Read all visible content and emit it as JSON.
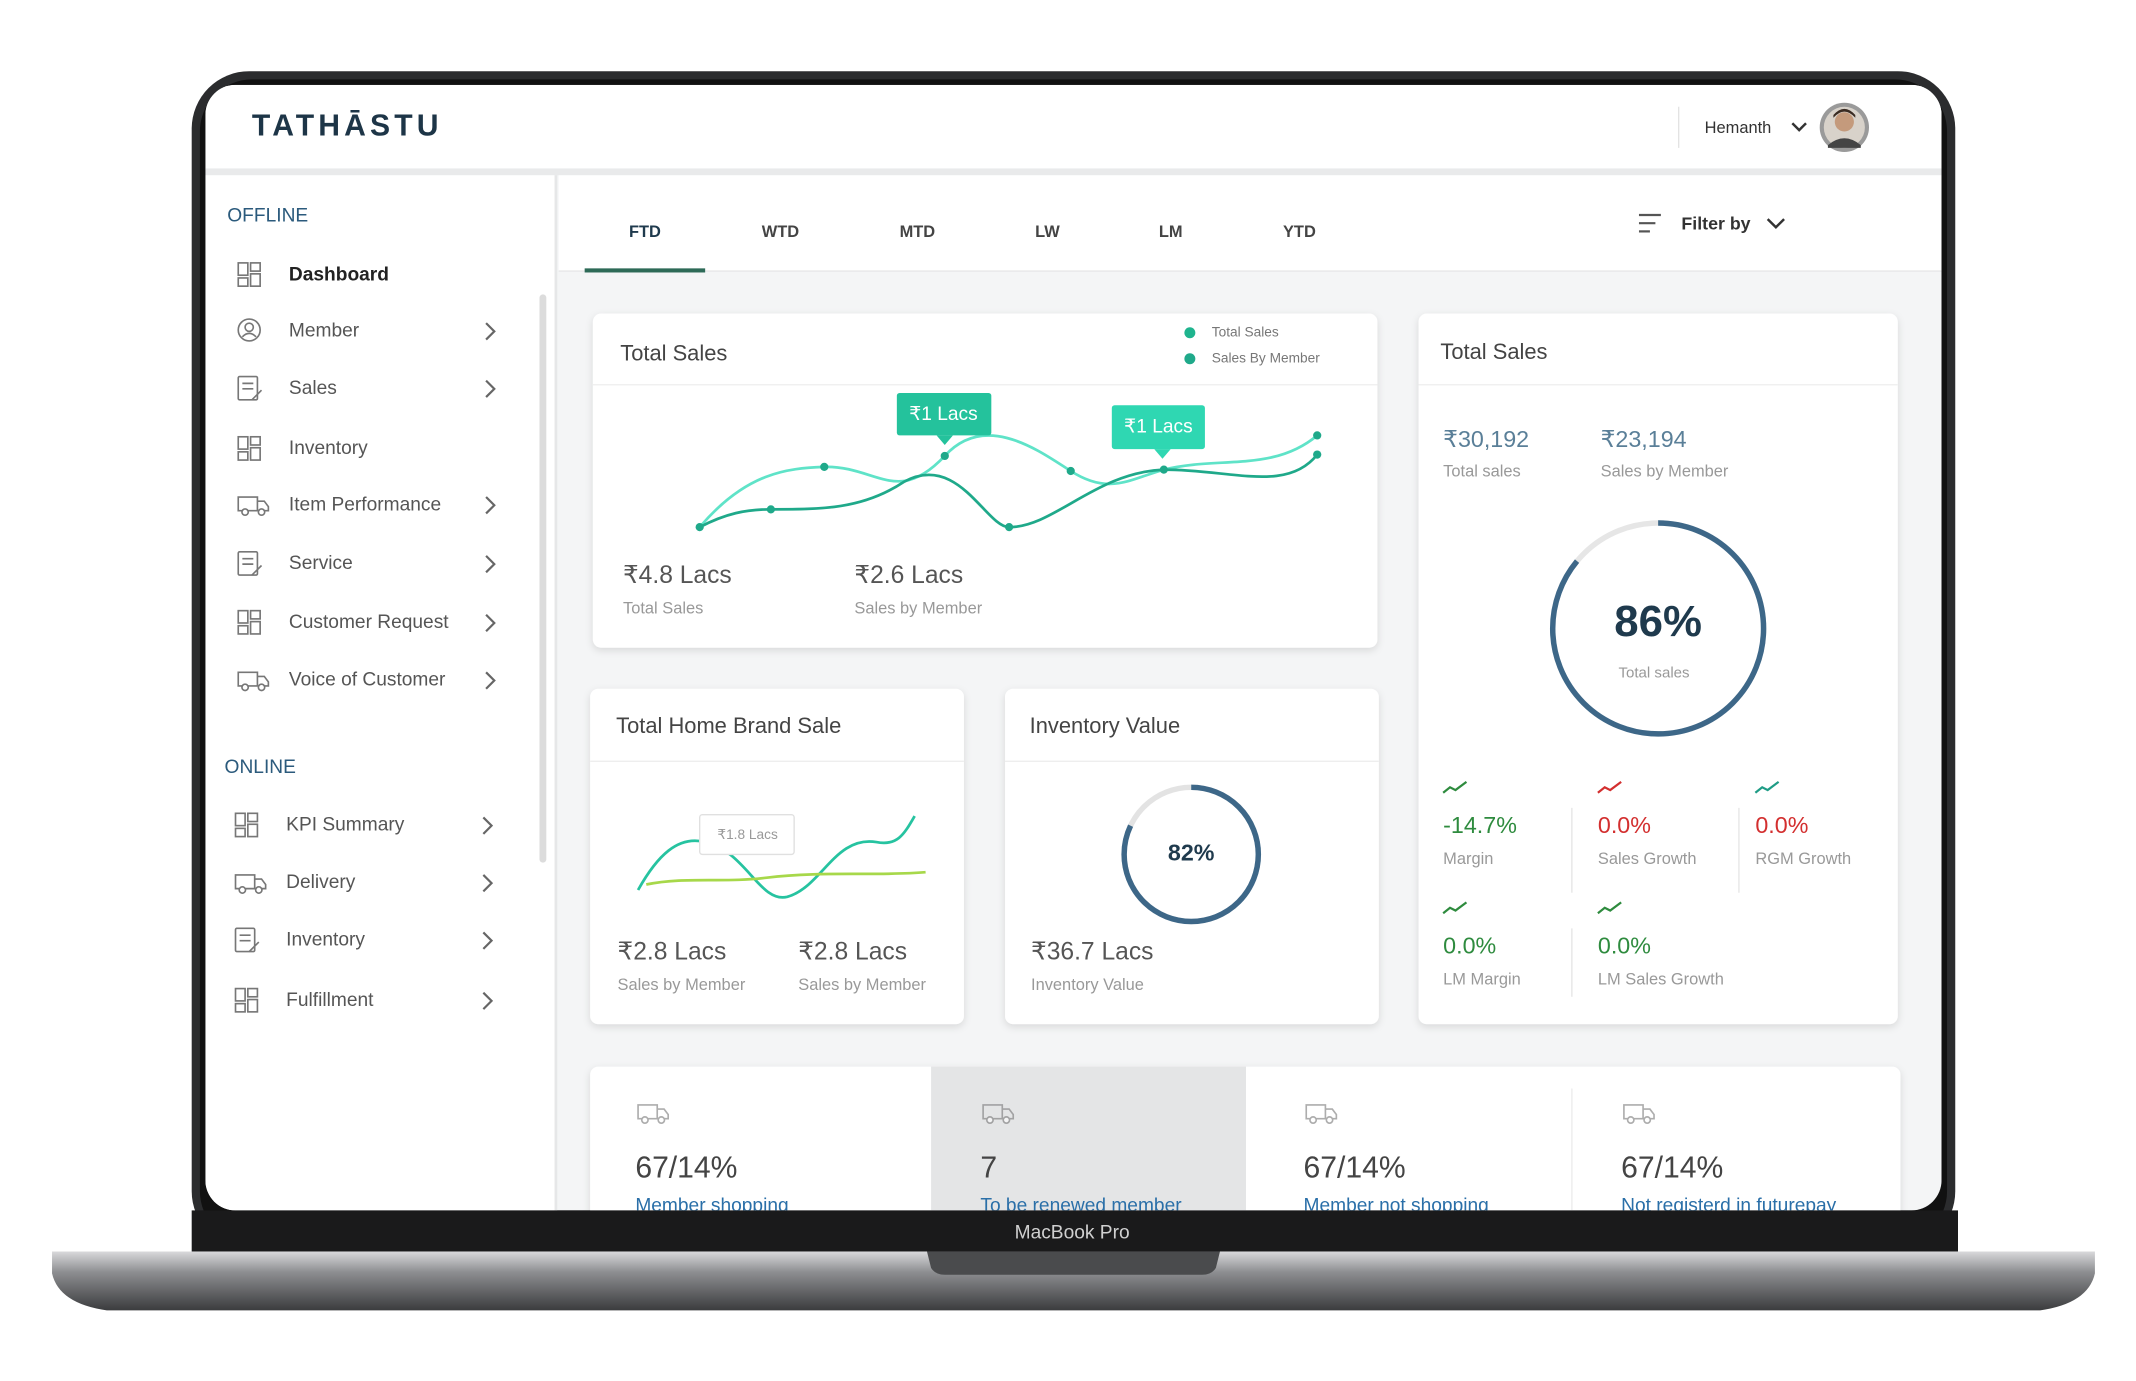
{
  "header": {
    "brand": "TATHĀSTU",
    "user_name": "Hemanth"
  },
  "sidebar": [
    {
      "title": "OFFLINE",
      "items": [
        "Dashboard",
        "Member",
        "Sales",
        "Inventory",
        "Item Performance",
        "Service",
        "Customer Request",
        "Voice of Customer"
      ]
    },
    {
      "title": "ONLINE",
      "items": [
        "KPI Summary",
        "Delivery",
        "Inventory",
        "Fulfillment"
      ]
    }
  ],
  "tabs": [
    "FTD",
    "WTD",
    "MTD",
    "LW",
    "LM",
    "YTD"
  ],
  "filter": "Filter by",
  "total_sales_trend": {
    "title": "Total Sales",
    "legend": [
      "Total Sales",
      "Sales By Member"
    ],
    "callouts": [
      "₹1 Lacs",
      "₹1 Lacs"
    ],
    "stats": [
      {
        "value": "₹4.8 Lacs",
        "label": "Total Sales"
      },
      {
        "value": "₹2.6 Lacs",
        "label": "Sales by Member"
      }
    ]
  },
  "home_brand": {
    "title": "Total Home Brand Sale",
    "callout": "₹1.8 Lacs",
    "stats": [
      {
        "value": "₹2.8 Lacs",
        "label": "Sales by Member"
      },
      {
        "value": "₹2.8 Lacs",
        "label": "Sales by Member"
      }
    ]
  },
  "inventory": {
    "title": "Inventory Value",
    "gauge": {
      "value": 82,
      "label": "82%"
    },
    "stat": {
      "value": "₹36.7 Lacs",
      "label": "Inventory Value"
    }
  },
  "total_sales_summary": {
    "title": "Total Sales",
    "stats": [
      {
        "value": "₹30,192",
        "label": "Total sales"
      },
      {
        "value": "₹23,194",
        "label": "Sales by Member"
      }
    ],
    "gauge": {
      "value": 86,
      "label": "86%",
      "caption": "Total sales"
    },
    "metrics": [
      {
        "value": "-14.7%",
        "label": "Margin"
      },
      {
        "value": "0.0%",
        "label": "Sales Growth"
      },
      {
        "value": "0.0%",
        "label": "RGM Growth"
      },
      {
        "value": "0.0%",
        "label": "LM Margin"
      },
      {
        "value": "0.0%",
        "label": "LM Sales Growth"
      }
    ]
  },
  "member_tiles": [
    {
      "value": "67/14%",
      "label": "Member shopping"
    },
    {
      "value": "7",
      "label": "To be renewed member"
    },
    {
      "value": "67/14%",
      "label": "Member not shopping"
    },
    {
      "value": "67/14%",
      "label": "Not registerd in futurepay"
    }
  ],
  "device_label": "MacBook Pro"
}
